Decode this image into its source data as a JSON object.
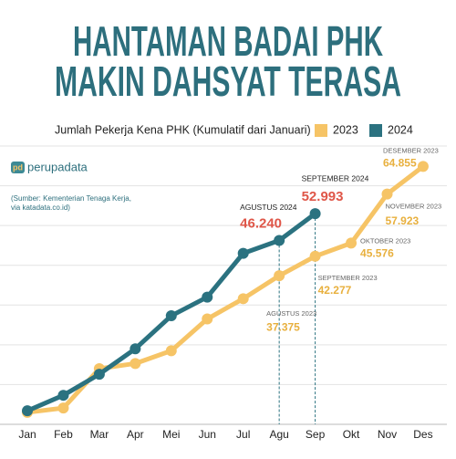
{
  "chart_data": {
    "type": "line",
    "title_lines": [
      "HANTAMAN BADAI PHK",
      "MAKIN DAHSYAT TERASA"
    ],
    "subtitle": "Jumlah Pekerja Kena PHK (Kumulatif dari Januari)",
    "logo_mark": "pd",
    "logo": "perupadata",
    "source_lines": [
      "(Sumber: Kementerian Tenaga Kerja,",
      "via katadata.co.id)"
    ],
    "categories": [
      "Jan",
      "Feb",
      "Mar",
      "Apr",
      "Mei",
      "Jun",
      "Jul",
      "Agu",
      "Sep",
      "Okt",
      "Nov",
      "Des"
    ],
    "series": [
      {
        "name": "2023",
        "color": "#f6c466",
        "label_color": "#e8b03e",
        "values": [
          3000,
          4100,
          14000,
          15300,
          18500,
          26500,
          31600,
          37375,
          42277,
          45576,
          57923,
          64855
        ],
        "value_labels": [
          null,
          null,
          null,
          null,
          null,
          null,
          null,
          "37.375",
          "42.277",
          "45.576",
          "57.923",
          "64.855"
        ],
        "point_labels": [
          null,
          null,
          null,
          null,
          null,
          null,
          null,
          "AGUSTUS 2023",
          "SEPTEMBER 2023",
          "OKTOBER 2023",
          "NOVEMBER 2023",
          "DESEMBER 2023"
        ]
      },
      {
        "name": "2024",
        "color": "#2b7280",
        "label_color": "#df5648",
        "values": [
          3400,
          7300,
          12600,
          19000,
          27300,
          32000,
          43000,
          46240,
          52993,
          null,
          null,
          null
        ],
        "value_labels": [
          null,
          null,
          null,
          null,
          null,
          null,
          null,
          "46.240",
          "52.993",
          null,
          null,
          null
        ],
        "point_labels": [
          null,
          null,
          null,
          null,
          null,
          null,
          null,
          "AGUSTUS 2024",
          "SEPTEMBER 2024",
          null,
          null,
          null
        ]
      }
    ],
    "ylim": [
      0,
      70000
    ],
    "yticks": [
      0,
      10000,
      20000,
      30000,
      40000,
      50000,
      60000,
      70000
    ],
    "grid": true,
    "show_ytick_labels": false
  }
}
